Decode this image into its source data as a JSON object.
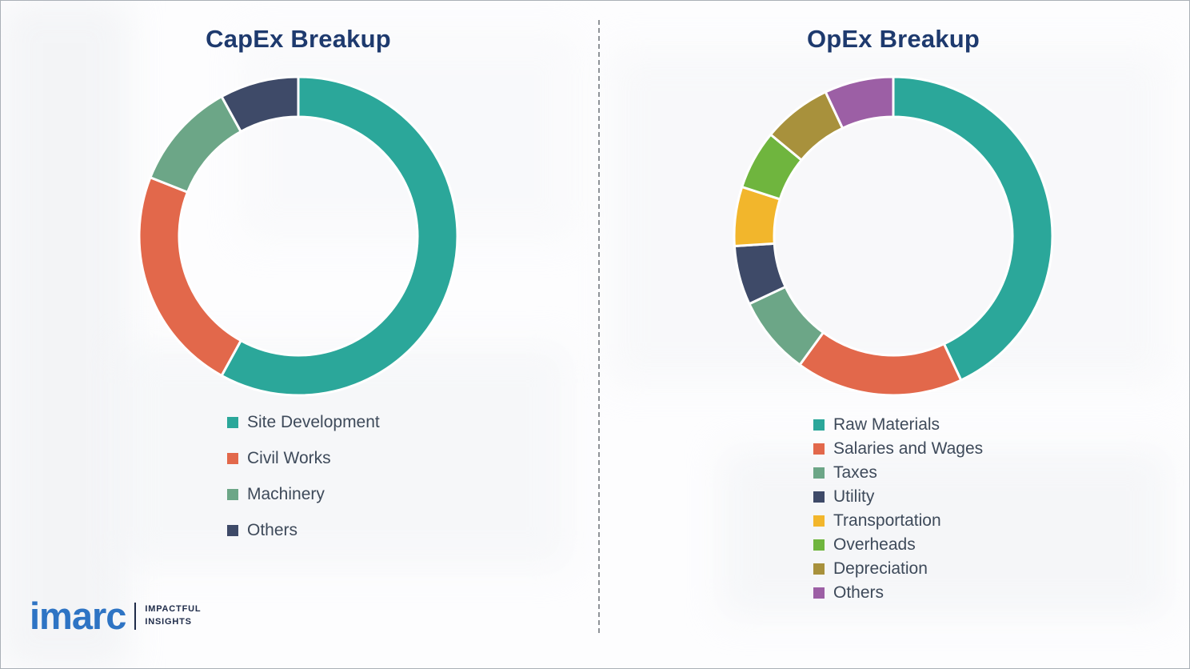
{
  "page": {
    "background_color": "#fdfdfe"
  },
  "chart_data": [
    {
      "type": "donut",
      "title": "CapEx Breakup",
      "categories": [
        "Site Development",
        "Civil Works",
        "Machinery",
        "Others"
      ],
      "values": [
        58,
        23,
        11,
        8
      ],
      "colors": [
        "#2ba79a",
        "#e2684b",
        "#6ca687",
        "#3e4a68"
      ],
      "legend_position": "bottom",
      "start_angle_deg": 0,
      "direction": "clockwise"
    },
    {
      "type": "donut",
      "title": "OpEx Breakup",
      "categories": [
        "Raw Materials",
        "Salaries and Wages",
        "Taxes",
        "Utility",
        "Transportation",
        "Overheads",
        "Depreciation",
        "Others"
      ],
      "values": [
        43,
        17,
        8,
        6,
        6,
        6,
        7,
        7
      ],
      "colors": [
        "#2ba79a",
        "#e2684b",
        "#6ca687",
        "#3e4a68",
        "#f2b62c",
        "#6fb53e",
        "#a8913c",
        "#9c5fa5"
      ],
      "legend_position": "bottom",
      "start_angle_deg": 0,
      "direction": "clockwise"
    }
  ],
  "separator": {
    "style": "vertical-dashed",
    "color": "#8f9398"
  },
  "logo": {
    "brand": "imarc",
    "tagline_line1": "IMPACTFUL",
    "tagline_line2": "INSIGHTS",
    "brand_color": "#2e74c4",
    "tagline_color": "#1e2b49"
  }
}
